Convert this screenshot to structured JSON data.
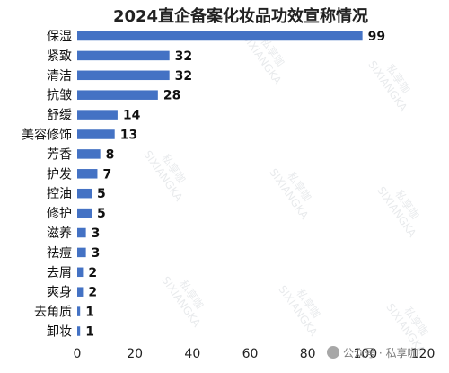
{
  "chart_data": {
    "type": "bar",
    "orientation": "horizontal",
    "title": "2024直企备案化妆品功效宣称情况",
    "categories": [
      "保湿",
      "紧致",
      "清洁",
      "抗皱",
      "舒缓",
      "美容修饰",
      "芳香",
      "护发",
      "控油",
      "修护",
      "滋养",
      "祛痘",
      "去屑",
      "爽身",
      "去角质",
      "卸妆"
    ],
    "values": [
      99,
      32,
      32,
      28,
      14,
      13,
      8,
      7,
      5,
      5,
      3,
      3,
      2,
      2,
      1,
      1
    ],
    "xlabel": "",
    "ylabel": "",
    "xlim": [
      0,
      120
    ],
    "xticks": [
      0,
      20,
      40,
      60,
      80,
      100,
      120
    ],
    "bar_color": "#4472c4",
    "grid": false,
    "legend": "none",
    "data_labels": true
  },
  "watermark": {
    "brand": "私享咖",
    "latin": "SIXIANGKA",
    "source_text": "公众号 · 私享咖",
    "color": "#9aa3ad"
  }
}
